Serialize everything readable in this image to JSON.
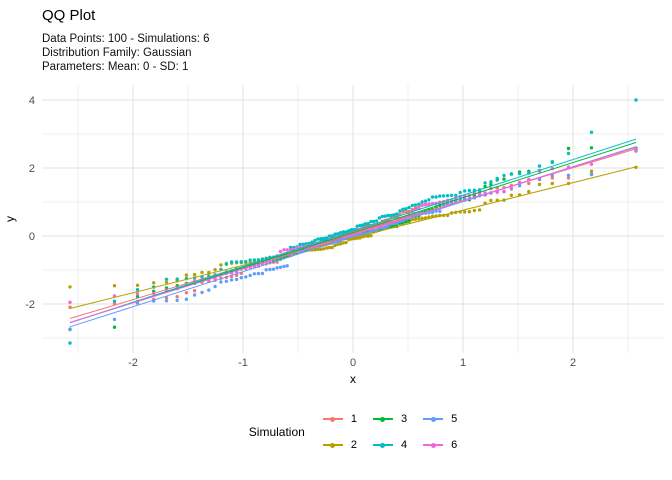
{
  "header": {
    "title": "QQ Plot",
    "subtitle_lines": [
      "Data Points: 100 - Simulations: 6",
      "Distribution Family: Gaussian",
      "Parameters: Mean: 0 - SD: 1"
    ]
  },
  "chart_data": {
    "type": "scatter",
    "subtype": "qq-plot-with-fit-lines",
    "title": "QQ Plot",
    "n_points_per_series": 100,
    "theoretical_quantiles": "x_i = qnorm((i - 0.5) / 100), i = 1..100, range -2.576..2.576",
    "x": {
      "label": "x",
      "ticks": [
        -2,
        -1,
        0,
        1,
        2
      ],
      "minor": [
        -2.5,
        -1.5,
        -0.5,
        0.5,
        1.5,
        2.5
      ],
      "range": [
        -2.83,
        2.83
      ]
    },
    "y": {
      "label": "y",
      "ticks": [
        -2,
        0,
        2,
        4
      ],
      "minor": [
        -3,
        -1,
        1,
        3
      ],
      "range": [
        -3.45,
        4.45
      ]
    },
    "grid": {
      "major_color": "#e2e2e2",
      "minor_color": "#efefef",
      "background": "#ffffff"
    },
    "tick_label_color": "#4d4d4d",
    "series": [
      {
        "name": "1",
        "color": "#F8766D",
        "line": {
          "intercept": 0.07,
          "slope": 0.97
        },
        "seed": 101
      },
      {
        "name": "2",
        "color": "#B79F00",
        "line": {
          "intercept": -0.05,
          "slope": 0.81
        },
        "seed": 202
      },
      {
        "name": "3",
        "color": "#00BA38",
        "line": {
          "intercept": 0.1,
          "slope": 1.03
        },
        "seed": 303,
        "bump": {
          "center": 1.6,
          "width": 0.8,
          "amp": 0.18
        }
      },
      {
        "name": "4",
        "color": "#00BFC4",
        "line": {
          "intercept": 0.15,
          "slope": 1.05
        },
        "seed": 404,
        "force_min": [
          -3.15
        ],
        "force_max": [
          3.05,
          4.0
        ]
      },
      {
        "name": "5",
        "color": "#619CFF",
        "line": {
          "intercept": -0.02,
          "slope": 1.03
        },
        "seed": 505
      },
      {
        "name": "6",
        "color": "#F564E3",
        "line": {
          "intercept": 0.03,
          "slope": 1.0
        },
        "seed": 606,
        "force_min": [
          -1.95
        ]
      }
    ],
    "notable_points": [
      {
        "series": "4",
        "x": 2.58,
        "y": 4.0,
        "note": "cyan outlier top right"
      },
      {
        "series": "4",
        "x": 2.17,
        "y": 3.05,
        "note": "cyan outlier above pack"
      },
      {
        "series": "4",
        "x": -2.58,
        "y": -3.15,
        "note": "cyan outlier bottom left"
      },
      {
        "series": "6",
        "x": -2.58,
        "y": -1.95,
        "note": "magenta min sits high"
      }
    ],
    "legend": {
      "title": "Simulation",
      "position": "bottom-center",
      "entries": [
        {
          "label": "1"
        },
        {
          "label": "2"
        },
        {
          "label": "3"
        },
        {
          "label": "4"
        },
        {
          "label": "5"
        },
        {
          "label": "6"
        }
      ]
    }
  }
}
